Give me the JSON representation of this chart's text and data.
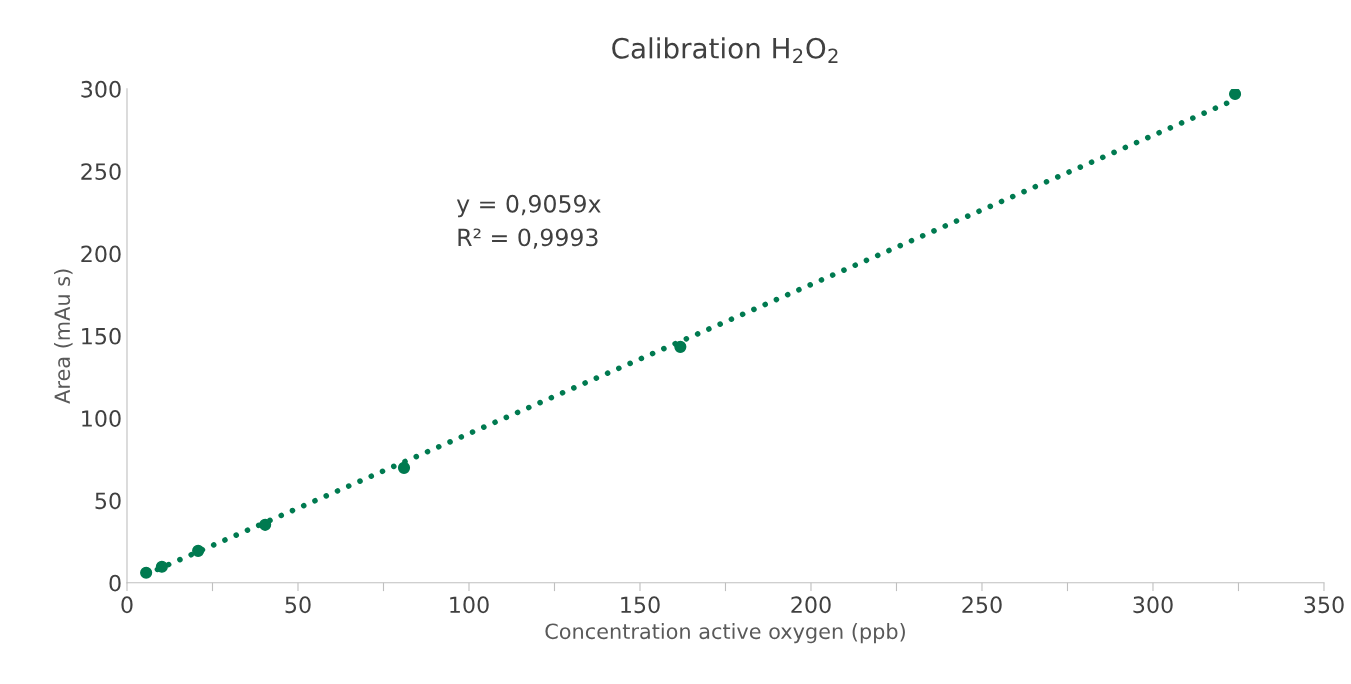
{
  "chart_data": {
    "type": "scatter",
    "title": "Calibration H$_{2}$O$_{2}$",
    "xlabel": "Concentration active oxygen (ppb)",
    "ylabel": "Area (mAu s)",
    "series": [
      {
        "color": "#007a50",
        "x": [
          5.6,
          10.2,
          20.8,
          40.4,
          81,
          161.8,
          324
        ],
        "values": [
          6.1,
          9.7,
          19.4,
          35.2,
          69.8,
          143.3,
          296.9
        ]
      },
      {
        "type": "line",
        "color": "#007a50",
        "line_style": "dotted",
        "marker": "none",
        "x": [
          5.6,
          324
        ],
        "values": [
          5.1,
          293.5
        ]
      }
    ],
    "xlim": [
      0,
      350
    ],
    "xticks": [
      0,
      {
        "value": 25,
        "label": null
      },
      50,
      {
        "value": 75,
        "label": null
      },
      100,
      {
        "value": 125,
        "label": null
      },
      150,
      {
        "value": 175,
        "label": null
      },
      200,
      {
        "value": 225,
        "label": null
      },
      250,
      {
        "value": 275,
        "label": null
      },
      300,
      {
        "value": 325,
        "label": null
      },
      350
    ],
    "ylim": [
      0,
      300
    ],
    "yticks": [
      0,
      50,
      100,
      150,
      200,
      250,
      300
    ],
    "grid": false,
    "marker": "circle",
    "annotations": [
      "y = 0,9059x",
      "R² = 0,9993"
    ]
  }
}
